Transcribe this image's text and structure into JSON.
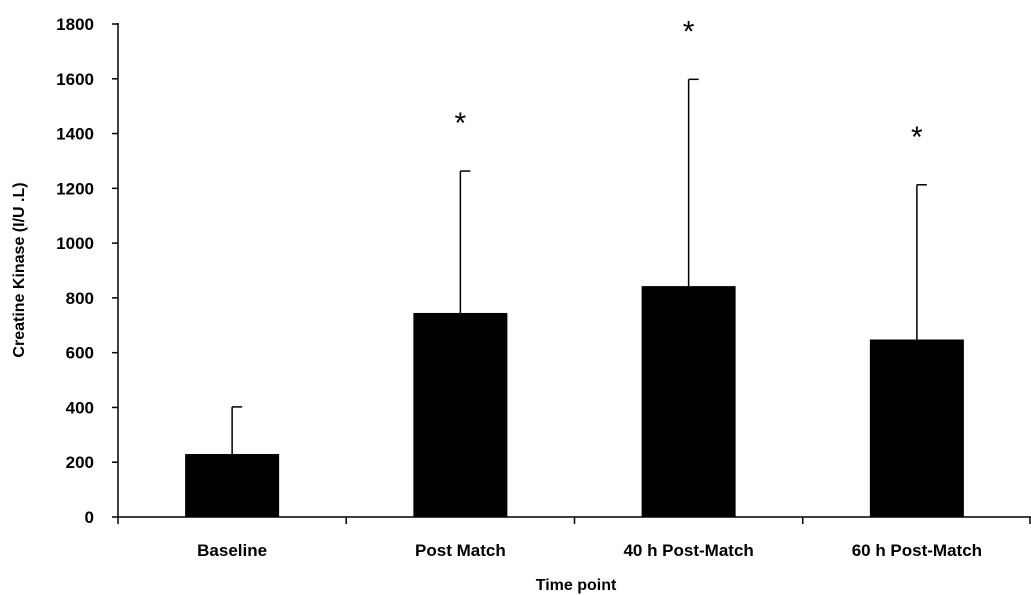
{
  "chart_data": {
    "type": "bar",
    "title": "",
    "xlabel": "Time point",
    "ylabel": "Creatine Kinase (I/U .L)",
    "categories": [
      "Baseline",
      "Post Match",
      "40 h Post-Match",
      "60 h Post-Match"
    ],
    "values": [
      230,
      745,
      843,
      648
    ],
    "error_upper": [
      402,
      1263,
      1598,
      1213
    ],
    "annotations": [
      "",
      "*",
      "*",
      "*"
    ],
    "ylim": [
      0,
      1800
    ],
    "yticks": [
      "0",
      "200",
      "400",
      "600",
      "800",
      "1000",
      "1200",
      "1400",
      "1600",
      "1800"
    ],
    "grid": false,
    "legend": "none",
    "bar_color": "#000000"
  }
}
